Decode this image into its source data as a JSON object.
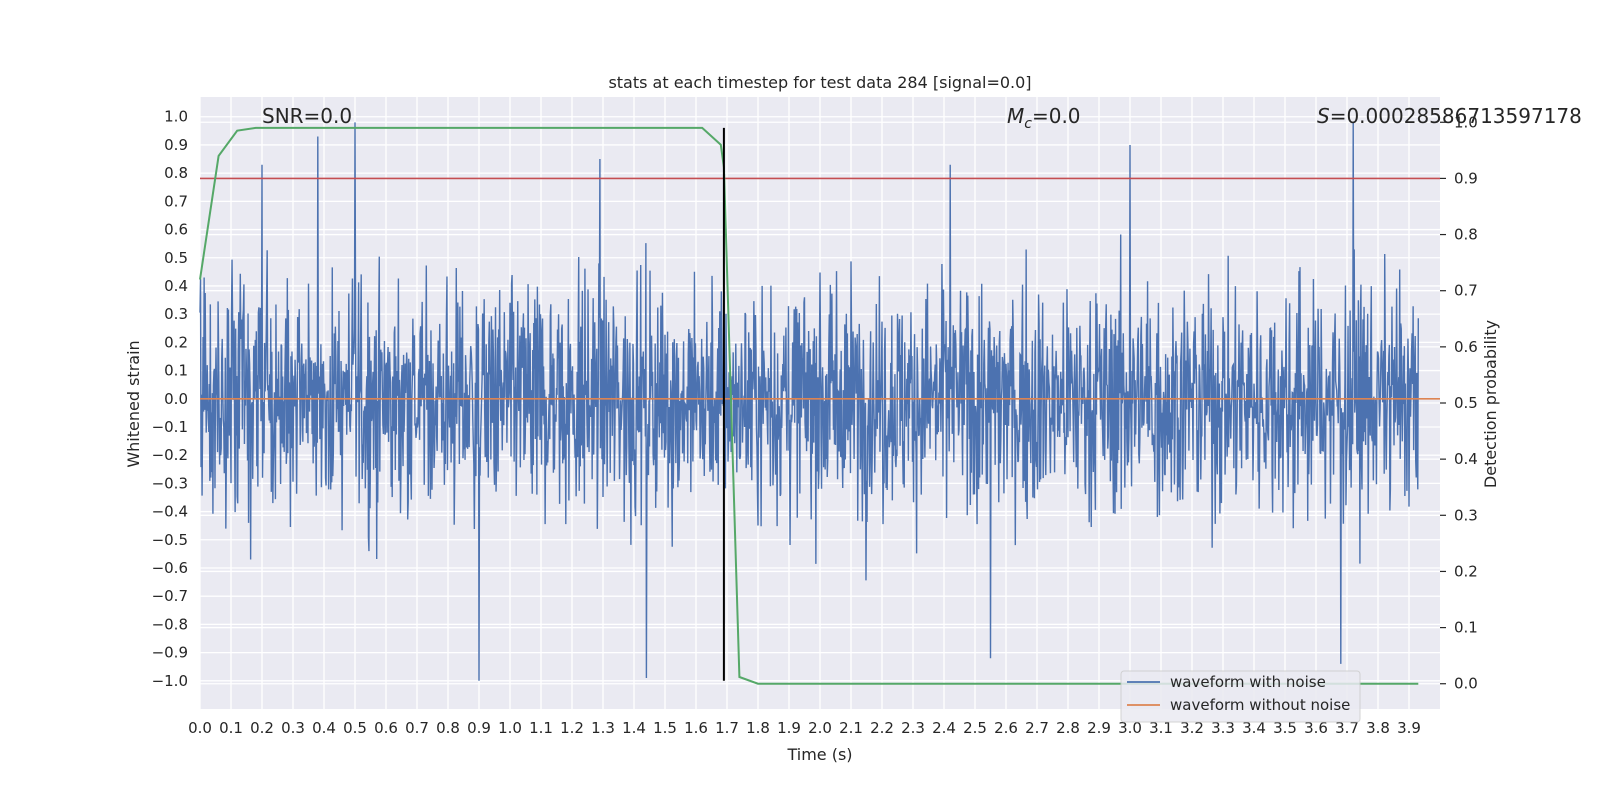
{
  "chart_data": {
    "type": "line",
    "title": "stats at each timestep for test data 284 [signal=0.0]",
    "xlabel": "Time (s)",
    "ylabel": "Whitened strain",
    "y2label": "Detection probability",
    "xlim": [
      0.0,
      4.0
    ],
    "ylim": [
      -1.1,
      1.07
    ],
    "y2lim": [
      -0.045,
      1.045
    ],
    "x_ticks": [
      0.0,
      0.1,
      0.2,
      0.3,
      0.4,
      0.5,
      0.6,
      0.7,
      0.8,
      0.9,
      1.0,
      1.1,
      1.2,
      1.3,
      1.4,
      1.5,
      1.6,
      1.7,
      1.8,
      1.9,
      2.0,
      2.1,
      2.2,
      2.3,
      2.4,
      2.5,
      2.6,
      2.7,
      2.8,
      2.9,
      3.0,
      3.1,
      3.2,
      3.3,
      3.4,
      3.5,
      3.6,
      3.7,
      3.8,
      3.9
    ],
    "y_ticks": [
      1.0,
      0.9,
      0.8,
      0.7,
      0.6,
      0.5,
      0.4,
      0.3,
      0.2,
      0.1,
      0.0,
      -0.1,
      -0.2,
      -0.3,
      -0.4,
      -0.5,
      -0.6,
      -0.7,
      -0.8,
      -0.9,
      -1.0
    ],
    "y2_ticks": [
      1.0,
      0.9,
      0.8,
      0.7,
      0.6,
      0.5,
      0.4,
      0.3,
      0.2,
      0.1,
      0.0
    ],
    "annotations": {
      "snr": "SNR=0.0",
      "mc": "=0.0",
      "mc_symbol": "M",
      "mc_sub": "c",
      "s_symbol": "S",
      "s": "=0.00028586713597178"
    },
    "threshold": 0.9,
    "detection_time": 1.69,
    "legend": {
      "position": "lower-right",
      "entries": [
        {
          "label": "waveform with noise",
          "color": "#4c72b0"
        },
        {
          "label": "waveform without noise",
          "color": "#dd8452"
        }
      ]
    },
    "series": [
      {
        "name": "waveform with noise",
        "axis": "left",
        "noise_seed": 284,
        "noise_std": 0.3,
        "peaks": [
          {
            "x": 0.2,
            "y": 0.83
          },
          {
            "x": 0.38,
            "y": 0.93
          },
          {
            "x": 0.5,
            "y": 0.98
          },
          {
            "x": 0.9,
            "y": -1.0
          },
          {
            "x": 1.29,
            "y": 0.85
          },
          {
            "x": 1.44,
            "y": -0.99
          },
          {
            "x": 2.42,
            "y": 0.83
          },
          {
            "x": 2.55,
            "y": -0.92
          },
          {
            "x": 3.0,
            "y": 0.9
          },
          {
            "x": 3.68,
            "y": -0.94
          },
          {
            "x": 3.72,
            "y": 0.98
          }
        ]
      },
      {
        "name": "waveform without noise",
        "axis": "left",
        "x": [
          0.0,
          4.0
        ],
        "y": [
          0.0,
          0.0
        ]
      },
      {
        "name": "Detection probability",
        "axis": "right",
        "x": [
          0.0,
          0.06,
          0.12,
          0.18,
          0.5,
          1.0,
          1.62,
          1.68,
          1.69,
          1.74,
          1.8,
          2.0,
          3.0,
          3.93
        ],
        "y": [
          0.72,
          0.94,
          0.985,
          0.99,
          0.99,
          0.99,
          0.99,
          0.96,
          0.92,
          0.012,
          0.0,
          0.0,
          0.0,
          0.0
        ]
      }
    ]
  },
  "colors": {
    "background": "#eaeaf2",
    "grid": "#ffffff",
    "noise": "#4c72b0",
    "clean": "#dd8452",
    "probability": "#55a868",
    "threshold": "#c44e52",
    "marker": "#000000"
  }
}
